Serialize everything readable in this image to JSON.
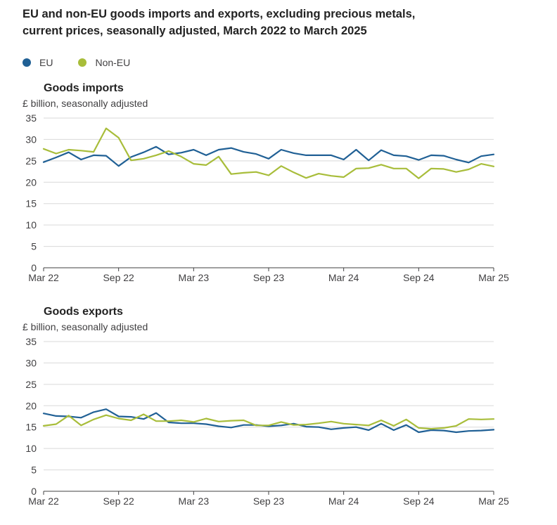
{
  "title_line1": "EU and non-EU goods imports and exports, excluding precious metals,",
  "title_line2": "current prices, seasonally adjusted, March 2022 to March 2025",
  "legend": [
    {
      "label": "EU",
      "color": "#206095"
    },
    {
      "label": "Non-EU",
      "color": "#A8BD3A"
    }
  ],
  "chart_data": [
    {
      "type": "line",
      "title": "Goods imports",
      "ylabel": "£ billion, seasonally adjusted",
      "xlabel": "",
      "ylim": [
        0,
        35
      ],
      "yticks": [
        0,
        5,
        10,
        15,
        20,
        25,
        30,
        35
      ],
      "xticks": [
        "Mar 22",
        "Sep 22",
        "Mar 23",
        "Sep 23",
        "Mar 24",
        "Sep 24",
        "Mar 25"
      ],
      "x_count": 37,
      "grid": true,
      "series": [
        {
          "name": "EU",
          "color": "#206095",
          "values": [
            24.7,
            25.8,
            27.0,
            25.3,
            26.3,
            26.2,
            23.8,
            25.9,
            27.0,
            28.3,
            26.5,
            26.9,
            27.6,
            26.3,
            27.6,
            28.0,
            27.1,
            26.6,
            25.5,
            27.6,
            26.8,
            26.3,
            26.3,
            26.3,
            25.3,
            27.6,
            25.1,
            27.5,
            26.3,
            26.1,
            25.2,
            26.3,
            26.2,
            25.3,
            24.6,
            26.1,
            26.5
          ]
        },
        {
          "name": "Non-EU",
          "color": "#A8BD3A",
          "values": [
            27.8,
            26.7,
            27.6,
            27.4,
            27.1,
            32.6,
            30.4,
            25.1,
            25.5,
            26.3,
            27.3,
            26.0,
            24.3,
            24.0,
            26.0,
            21.9,
            22.2,
            22.4,
            21.6,
            23.8,
            22.3,
            21.0,
            22.0,
            21.5,
            21.2,
            23.2,
            23.3,
            24.1,
            23.2,
            23.2,
            20.9,
            23.2,
            23.1,
            22.4,
            23.0,
            24.3,
            23.7
          ]
        }
      ]
    },
    {
      "type": "line",
      "title": "Goods exports",
      "ylabel": "£ billion, seasonally adjusted",
      "xlabel": "",
      "ylim": [
        0,
        35
      ],
      "yticks": [
        0,
        5,
        10,
        15,
        20,
        25,
        30,
        35
      ],
      "xticks": [
        "Mar 22",
        "Sep 22",
        "Mar 23",
        "Sep 23",
        "Mar 24",
        "Sep 24",
        "Mar 25"
      ],
      "x_count": 37,
      "grid": true,
      "series": [
        {
          "name": "EU",
          "color": "#206095",
          "values": [
            18.2,
            17.6,
            17.5,
            17.2,
            18.5,
            19.2,
            17.5,
            17.4,
            16.9,
            18.3,
            16.1,
            15.9,
            15.9,
            15.7,
            15.2,
            14.9,
            15.5,
            15.5,
            15.2,
            15.4,
            15.8,
            15.1,
            15.0,
            14.5,
            14.8,
            15.0,
            14.3,
            15.8,
            14.3,
            15.5,
            13.8,
            14.3,
            14.2,
            13.8,
            14.1,
            14.2,
            14.4
          ]
        },
        {
          "name": "Non-EU",
          "color": "#A8BD3A",
          "values": [
            15.3,
            15.7,
            17.7,
            15.4,
            16.8,
            17.8,
            17.0,
            16.6,
            18.0,
            16.4,
            16.4,
            16.6,
            16.2,
            17.0,
            16.3,
            16.5,
            16.6,
            15.4,
            15.4,
            16.2,
            15.5,
            15.6,
            15.9,
            16.3,
            15.8,
            15.6,
            15.4,
            16.6,
            15.3,
            16.8,
            14.8,
            14.6,
            14.8,
            15.3,
            16.9,
            16.8,
            16.9
          ]
        }
      ]
    }
  ]
}
